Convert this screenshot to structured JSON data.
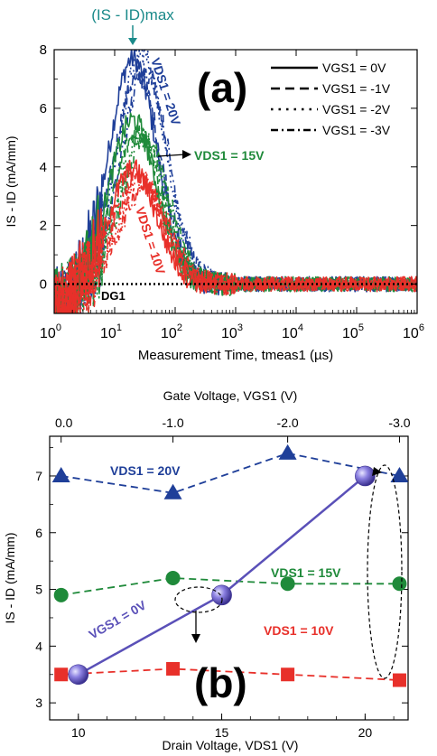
{
  "chart_data": [
    {
      "panel": "a",
      "type": "line",
      "panel_label": "(a)",
      "top_annotation": "(IS - ID)max",
      "xlabel": "Measurement Time, tmeas1 (µs)",
      "ylabel": "IS - ID (mA/mm)",
      "xscale": "log",
      "xlim": [
        1,
        1000000
      ],
      "ylim": [
        -1,
        8
      ],
      "x_tick_labels": [
        "10^0",
        "10^1",
        "10^2",
        "10^3",
        "10^4",
        "10^5",
        "10^6"
      ],
      "y_tick_labels": [
        "0",
        "2",
        "4",
        "6",
        "8"
      ],
      "legend_position": "top-right",
      "legend": [
        {
          "label": "VGS1 = 0V",
          "style": "solid"
        },
        {
          "label": "VGS1 = -1V",
          "style": "dash"
        },
        {
          "label": "VGS1 = -2V",
          "style": "dot"
        },
        {
          "label": "VGS1 = -3V",
          "style": "dash-dot"
        }
      ],
      "series_labels": [
        {
          "text": "VDS1 = 20V",
          "color": "#1f3f99"
        },
        {
          "text": "VDS1 = 15V",
          "color": "#1f8a3a"
        },
        {
          "text": "VDS1 = 10V",
          "color": "#e8302a"
        }
      ],
      "reference_label": "DG1",
      "series_groups": [
        {
          "color": "#1f3f99",
          "peaks": [
            7.7,
            7.1,
            7.9,
            7.3
          ]
        },
        {
          "color": "#1f8a3a",
          "peaks": [
            5.6,
            5.2,
            5.0,
            4.9
          ]
        },
        {
          "color": "#e8302a",
          "peaks": [
            3.9,
            3.6,
            3.5,
            3.4
          ]
        }
      ],
      "reference_line": {
        "y": 0,
        "style": "dot",
        "color": "#000000"
      }
    },
    {
      "panel": "b",
      "type": "scatter",
      "panel_label": "(b)",
      "xlabel": "Drain Voltage, VDS1 (V)",
      "ylabel": "IS - ID (mA/mm)",
      "top_xlabel": "Gate Voltage, VGS1 (V)",
      "xlim": [
        9,
        21.5
      ],
      "ylim": [
        2.7,
        7.7
      ],
      "x_tick_labels": [
        "10",
        "15",
        "20"
      ],
      "y_tick_labels": [
        "3",
        "4",
        "5",
        "6",
        "7"
      ],
      "top_tick_labels": [
        "0.0",
        "-1.0",
        "-2.0",
        "-3.0"
      ],
      "top_ticks_at_x": [
        9.4,
        13.3,
        17.3,
        21.2
      ],
      "series": [
        {
          "label": "VDS1 = 20V",
          "marker": "triangle",
          "color": "#1f3f99",
          "line": "dash",
          "x": [
            9.4,
            13.3,
            17.3,
            21.2
          ],
          "y": [
            7.0,
            6.7,
            7.4,
            7.0
          ]
        },
        {
          "label": "VDS1 = 15V",
          "marker": "circle",
          "color": "#1f8a3a",
          "line": "dash",
          "x": [
            9.4,
            13.3,
            17.3,
            21.2
          ],
          "y": [
            4.9,
            5.2,
            5.1,
            5.1
          ]
        },
        {
          "label": "VDS1 = 10V",
          "marker": "square",
          "color": "#e8302a",
          "line": "dash",
          "x": [
            9.4,
            13.3,
            17.3,
            21.2
          ],
          "y": [
            3.5,
            3.6,
            3.5,
            3.4
          ]
        },
        {
          "label": "VGS1 = 0V",
          "marker": "sphere",
          "color": "#5a50b8",
          "line": "solid",
          "x": [
            10,
            15,
            20
          ],
          "y": [
            3.5,
            4.9,
            7.0
          ]
        }
      ]
    }
  ]
}
